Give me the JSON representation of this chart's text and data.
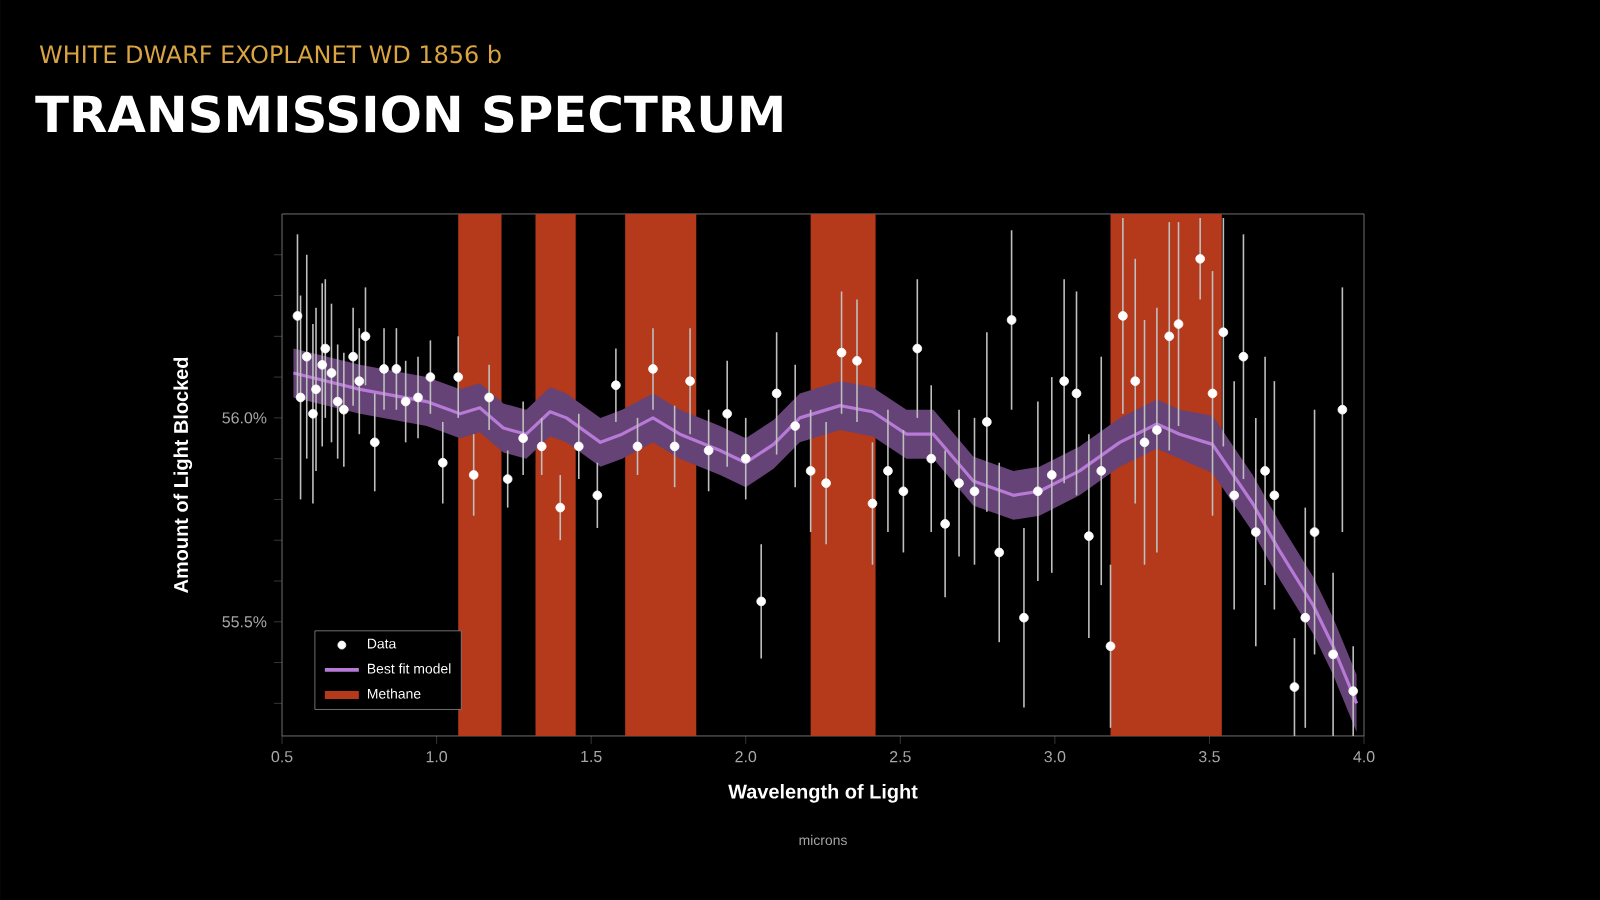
{
  "chart_data": {
    "type": "scatter",
    "subtitle": "WHITE DWARF EXOPLANET WD 1856 b",
    "title": "TRANSMISSION SPECTRUM",
    "xlabel": "Wavelength of Light",
    "ylabel": "Amount of Light Blocked",
    "annotations": [
      "microns"
    ],
    "xlim": [
      0.5,
      4.0
    ],
    "xticks": [
      {
        "value": 0.5,
        "label": "0.5"
      },
      {
        "value": 1.0,
        "label": "1.0"
      },
      {
        "value": 1.5,
        "label": "1.5"
      },
      {
        "value": 2.0,
        "label": "2.0"
      },
      {
        "value": 2.5,
        "label": "2.5"
      },
      {
        "value": 3.0,
        "label": "3.0"
      },
      {
        "value": 3.5,
        "label": "3.5"
      },
      {
        "value": 4.0,
        "label": "4.0"
      }
    ],
    "ylim": [
      55.22,
      56.5
    ],
    "yticks": [
      {
        "value": 55.3,
        "label": null
      },
      {
        "value": 55.4,
        "label": null
      },
      {
        "value": 55.5,
        "label": "55.5%"
      },
      {
        "value": 55.6,
        "label": null
      },
      {
        "value": 55.7,
        "label": null
      },
      {
        "value": 55.8,
        "label": null
      },
      {
        "value": 55.9,
        "label": null
      },
      {
        "value": 56.0,
        "label": "56.0%"
      },
      {
        "value": 56.1,
        "label": null
      },
      {
        "value": 56.2,
        "label": null
      },
      {
        "value": 56.3,
        "label": null
      },
      {
        "value": 56.4,
        "label": null
      }
    ],
    "legend": "bottom left",
    "bands": [
      {
        "axis": "x",
        "from": 1.07,
        "to": 1.21,
        "label": "Methane",
        "color": "#b5391b"
      },
      {
        "axis": "x",
        "from": 1.32,
        "to": 1.45,
        "color": "#b5391b"
      },
      {
        "axis": "x",
        "from": 1.61,
        "to": 1.84,
        "color": "#b5391b"
      },
      {
        "axis": "x",
        "from": 2.21,
        "to": 2.42,
        "color": "#b5391b"
      },
      {
        "axis": "x",
        "from": 3.18,
        "to": 3.54,
        "color": "#b5391b"
      }
    ],
    "series": [
      {
        "name": "Data",
        "color": "#ffffff",
        "marker": "circle",
        "x": [
          0.55,
          0.56,
          0.58,
          0.6,
          0.61,
          0.63,
          0.64,
          0.66,
          0.68,
          0.7,
          0.73,
          0.75,
          0.77,
          0.8,
          0.83,
          0.87,
          0.9,
          0.94,
          0.98,
          1.02,
          1.07,
          1.12,
          1.17,
          1.23,
          1.28,
          1.34,
          1.4,
          1.46,
          1.52,
          1.58,
          1.65,
          1.7,
          1.77,
          1.82,
          1.88,
          1.94,
          2.0,
          2.05,
          2.1,
          2.16,
          2.21,
          2.26,
          2.31,
          2.36,
          2.41,
          2.46,
          2.51,
          2.555,
          2.6,
          2.645,
          2.69,
          2.74,
          2.78,
          2.82,
          2.86,
          2.9,
          2.945,
          2.99,
          3.03,
          3.07,
          3.11,
          3.15,
          3.18,
          3.22,
          3.26,
          3.29,
          3.33,
          3.37,
          3.4,
          3.47,
          3.51,
          3.545,
          3.58,
          3.61,
          3.65,
          3.68,
          3.71,
          3.775,
          3.81,
          3.84,
          3.9,
          3.93,
          3.965
        ],
        "values": [
          56.25,
          56.05,
          56.15,
          56.01,
          56.07,
          56.13,
          56.17,
          56.11,
          56.04,
          56.02,
          56.15,
          56.09,
          56.2,
          55.94,
          56.12,
          56.12,
          56.04,
          56.05,
          56.1,
          55.89,
          56.1,
          55.86,
          56.05,
          55.85,
          55.95,
          55.93,
          55.78,
          55.93,
          55.81,
          56.08,
          55.93,
          56.12,
          55.93,
          56.09,
          55.92,
          56.01,
          55.9,
          55.55,
          56.06,
          55.98,
          55.87,
          55.84,
          56.16,
          56.14,
          55.79,
          55.87,
          55.82,
          56.17,
          55.9,
          55.74,
          55.84,
          55.82,
          55.99,
          55.67,
          56.24,
          55.51,
          55.82,
          55.86,
          56.09,
          56.06,
          55.71,
          55.87,
          55.44,
          56.25,
          56.09,
          55.94,
          55.97,
          56.2,
          56.23,
          56.39,
          56.06,
          56.21,
          55.81,
          56.15,
          55.72,
          55.87,
          55.81,
          55.34,
          55.51,
          55.72,
          55.42,
          56.02,
          55.33
        ],
        "errors": [
          0.2,
          0.25,
          0.25,
          0.22,
          0.2,
          0.2,
          0.17,
          0.17,
          0.14,
          0.14,
          0.12,
          0.13,
          0.12,
          0.12,
          0.1,
          0.1,
          0.1,
          0.1,
          0.09,
          0.1,
          0.1,
          0.1,
          0.08,
          0.07,
          0.09,
          0.07,
          0.08,
          0.08,
          0.08,
          0.09,
          0.07,
          0.1,
          0.1,
          0.13,
          0.1,
          0.13,
          0.1,
          0.14,
          0.15,
          0.15,
          0.15,
          0.15,
          0.15,
          0.15,
          0.15,
          0.15,
          0.15,
          0.17,
          0.18,
          0.18,
          0.18,
          0.18,
          0.22,
          0.22,
          0.22,
          0.22,
          0.22,
          0.24,
          0.25,
          0.25,
          0.25,
          0.28,
          0.2,
          0.24,
          0.3,
          0.3,
          0.3,
          0.28,
          0.25,
          0.1,
          0.3,
          0.28,
          0.28,
          0.3,
          0.28,
          0.28,
          0.28,
          0.12,
          0.27,
          0.3,
          0.2,
          0.3,
          0.11
        ]
      },
      {
        "name": "Best fit model",
        "type": "line",
        "color": "#b77ad6",
        "marker": "none",
        "x": [
          0.537,
          0.752,
          0.968,
          1.076,
          1.14,
          1.216,
          1.29,
          1.367,
          1.42,
          1.53,
          1.6,
          1.7,
          1.787,
          1.917,
          2.0,
          2.09,
          2.175,
          2.305,
          2.41,
          2.52,
          2.607,
          2.736,
          2.866,
          2.95,
          3.08,
          3.21,
          3.33,
          3.404,
          3.51,
          3.64,
          3.73,
          3.836,
          3.9,
          3.976
        ],
        "values": [
          56.11,
          56.07,
          56.04,
          56.01,
          56.025,
          55.975,
          55.96,
          56.015,
          56.0,
          55.94,
          55.96,
          56.0,
          55.96,
          55.92,
          55.89,
          55.935,
          56.0,
          56.03,
          56.015,
          55.96,
          55.96,
          55.845,
          55.81,
          55.82,
          55.87,
          55.94,
          55.985,
          55.96,
          55.935,
          55.79,
          55.67,
          55.54,
          55.44,
          55.3
        ],
        "lower": [
          56.05,
          56.01,
          55.98,
          55.95,
          55.965,
          55.915,
          55.9,
          55.955,
          55.94,
          55.88,
          55.9,
          55.94,
          55.9,
          55.86,
          55.83,
          55.875,
          55.94,
          55.97,
          55.955,
          55.9,
          55.9,
          55.785,
          55.75,
          55.76,
          55.81,
          55.88,
          55.925,
          55.9,
          55.865,
          55.72,
          55.6,
          55.47,
          55.37,
          55.23
        ],
        "upper": [
          56.17,
          56.13,
          56.1,
          56.07,
          56.085,
          56.035,
          56.02,
          56.075,
          56.06,
          56.0,
          56.02,
          56.06,
          56.02,
          55.98,
          55.95,
          55.995,
          56.06,
          56.09,
          56.075,
          56.02,
          56.02,
          55.905,
          55.87,
          55.88,
          55.93,
          56.0,
          56.045,
          56.02,
          56.005,
          55.86,
          55.74,
          55.61,
          55.51,
          55.37
        ]
      }
    ]
  }
}
